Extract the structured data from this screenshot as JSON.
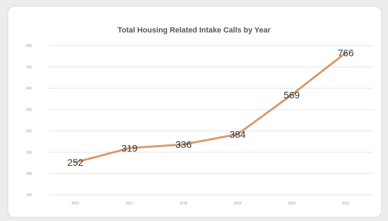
{
  "chart_data": {
    "type": "line",
    "title": "Total Housing Related Intake Calls by Year",
    "xlabel": "",
    "ylabel": "",
    "categories": [
      "2016",
      "2017",
      "2018",
      "2019",
      "2020",
      "2021"
    ],
    "series": [
      {
        "values": [
          252,
          319,
          336,
          384,
          569,
          766
        ]
      }
    ],
    "data_labels": [
      "252",
      "319",
      "336",
      "384",
      "569",
      "766"
    ],
    "y_ticks": [
      "100",
      "200",
      "300",
      "400",
      "500",
      "600",
      "700",
      "800"
    ],
    "ylim": [
      100,
      800
    ],
    "grid": true,
    "legend": "none",
    "colors": {
      "line": "#d99a6c",
      "grid": "#e4e4e4",
      "background": "#ececec",
      "card": "#ffffff"
    }
  }
}
